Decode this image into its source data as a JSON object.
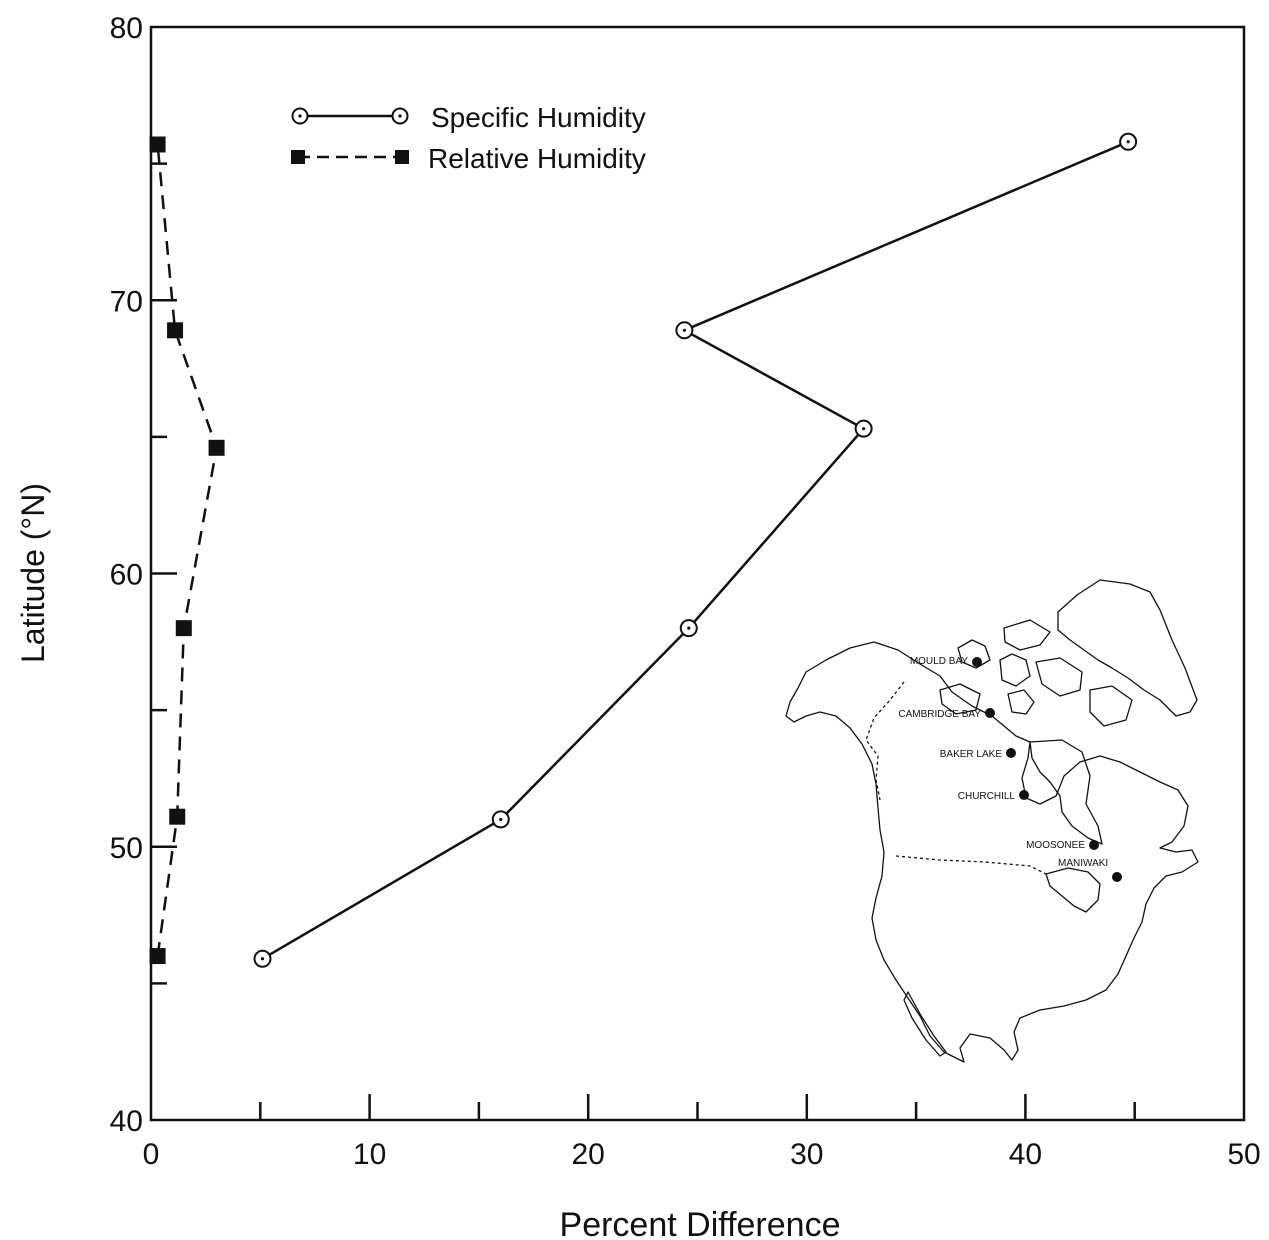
{
  "chart_data": {
    "type": "line",
    "xlabel": "Percent Difference",
    "ylabel": "Latitude (°N)",
    "xlim": [
      0,
      50
    ],
    "ylim": [
      40,
      80
    ],
    "x_ticks": [
      0,
      10,
      20,
      30,
      40,
      50
    ],
    "y_ticks": [
      40,
      50,
      60,
      70,
      80
    ],
    "grid": false,
    "legend_position": "top-left",
    "series": [
      {
        "name": "Specific Humidity",
        "style": "solid line, open circle markers",
        "points": [
          {
            "x": 5.1,
            "y": 45.9
          },
          {
            "x": 16.0,
            "y": 51.0
          },
          {
            "x": 24.6,
            "y": 58.0
          },
          {
            "x": 32.6,
            "y": 65.3
          },
          {
            "x": 24.4,
            "y": 68.9
          },
          {
            "x": 44.7,
            "y": 75.8
          }
        ]
      },
      {
        "name": "Relative Humidity",
        "style": "dashed line, filled square markers",
        "points": [
          {
            "x": 0.3,
            "y": 46.0
          },
          {
            "x": 1.2,
            "y": 51.1
          },
          {
            "x": 1.5,
            "y": 58.0
          },
          {
            "x": 3.0,
            "y": 64.6
          },
          {
            "x": 1.1,
            "y": 68.9
          },
          {
            "x": 0.3,
            "y": 75.7
          }
        ]
      }
    ],
    "inset_map": {
      "stations": [
        "MOULD BAY",
        "CAMBRIDGE BAY",
        "BAKER LAKE",
        "CHURCHILL",
        "MOOSONEE",
        "MANIWAKI"
      ]
    }
  },
  "colors": {
    "ink": "#111111",
    "background": "#ffffff"
  }
}
